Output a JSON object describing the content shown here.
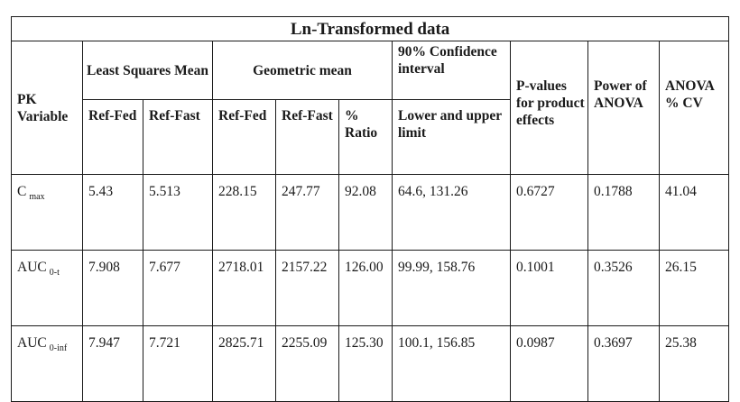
{
  "title": "Ln-Transformed data",
  "headers": {
    "pk_variable": "PK Variable",
    "least_squares_mean": "Least Squares Mean",
    "geometric_mean": "Geometric mean",
    "confidence_interval": "90% Confidence interval",
    "p_values": "P-values for product effects",
    "power": "Power of ANOVA",
    "cv": "ANOVA % CV",
    "ref_fed": "Ref-Fed",
    "ref_fast": "Ref-Fast",
    "ratio": "% Ratio",
    "limits": "Lower and upper limit"
  },
  "rows": [
    {
      "var": "C",
      "sub": "max",
      "ls_fed": "5.43",
      "ls_fast": "5.513",
      "gm_fed": "228.15",
      "gm_fast": "247.77",
      "ratio": "92.08",
      "ci": "64.6, 131.26",
      "p": "0.6727",
      "power": "0.1788",
      "cv": "41.04"
    },
    {
      "var": "AUC",
      "sub": "0-t",
      "ls_fed": "7.908",
      "ls_fast": "7.677",
      "gm_fed": "2718.01",
      "gm_fast": "2157.22",
      "ratio": "126.00",
      "ci": "99.99, 158.76",
      "p": "0.1001",
      "power": "0.3526",
      "cv": "26.15"
    },
    {
      "var": "AUC",
      "sub": "0-inf",
      "ls_fed": "7.947",
      "ls_fast": "7.721",
      "gm_fed": "2825.71",
      "gm_fast": "2255.09",
      "ratio": "125.30",
      "ci": "100.1, 156.85",
      "p": "0.0987",
      "power": "0.3697",
      "cv": "25.38"
    }
  ]
}
